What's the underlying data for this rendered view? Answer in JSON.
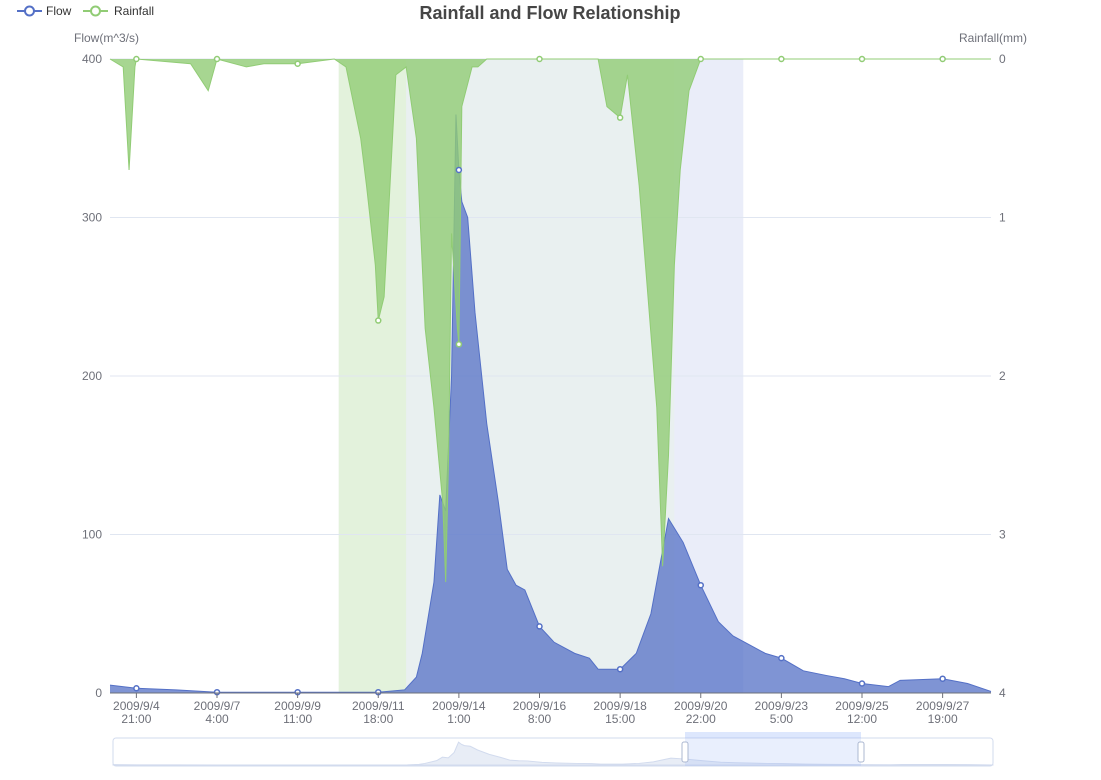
{
  "chart_data": {
    "type": "area",
    "title": "Rainfall and Flow Relationship",
    "legend": [
      {
        "name": "Flow",
        "color": "#5470c6"
      },
      {
        "name": "Rainfall",
        "color": "#91cc75"
      }
    ],
    "legend_position": "top-left",
    "y_left": {
      "name": "Flow(m^3/s)",
      "min": 0,
      "max": 400,
      "ticks": [
        "0",
        "100",
        "200",
        "300",
        "400"
      ]
    },
    "y_right": {
      "name": "Rainfall(mm)",
      "min": 0,
      "max": 4,
      "inverse": true,
      "ticks": [
        "0",
        "1",
        "2",
        "3",
        "4"
      ]
    },
    "x_labels": [
      [
        "2009/9/4",
        "21:00"
      ],
      [
        "2009/9/7",
        "4:00"
      ],
      [
        "2009/9/9",
        "11:00"
      ],
      [
        "2009/9/11",
        "18:00"
      ],
      [
        "2009/9/14",
        "1:00"
      ],
      [
        "2009/9/16",
        "8:00"
      ],
      [
        "2009/9/18",
        "15:00"
      ],
      [
        "2009/9/20",
        "22:00"
      ],
      [
        "2009/9/23",
        "5:00"
      ],
      [
        "2009/9/25",
        "12:00"
      ],
      [
        "2009/9/27",
        "19:00"
      ]
    ],
    "x_range": [
      "2009/9/4 3:00",
      "2009/9/29 4:00"
    ],
    "time_format": "date-hour",
    "grid": true,
    "mark_areas": [
      {
        "from": "2009/9/10 15:00",
        "to": "2009/9/12 13:00",
        "color": "#91cc75"
      },
      {
        "from": "2009/9/12 13:00",
        "to": "2009/9/20 4:00",
        "color": "#a7c4c2"
      },
      {
        "from": "2009/9/20 4:00",
        "to": "2009/9/22 3:00",
        "color": "#aab9e8"
      }
    ],
    "series": [
      {
        "name": "Flow",
        "axis": "left",
        "color": "#5470c6",
        "points": [
          [
            "2009/9/4 3:00",
            5
          ],
          [
            "2009/9/4 21:00",
            3
          ],
          [
            "2009/9/6 0:00",
            2
          ],
          [
            "2009/9/7 4:00",
            0.5
          ],
          [
            "2009/9/9 11:00",
            0.5
          ],
          [
            "2009/9/11 18:00",
            0.5
          ],
          [
            "2009/9/12 12:00",
            2
          ],
          [
            "2009/9/12 20:00",
            10
          ],
          [
            "2009/9/13 0:00",
            25
          ],
          [
            "2009/9/13 8:00",
            70
          ],
          [
            "2009/9/13 12:00",
            125
          ],
          [
            "2009/9/13 16:00",
            115
          ],
          [
            "2009/9/13 20:00",
            200
          ],
          [
            "2009/9/13 23:00",
            365
          ],
          [
            "2009/9/14 1:00",
            330
          ],
          [
            "2009/9/14 3:00",
            310
          ],
          [
            "2009/9/14 7:00",
            300
          ],
          [
            "2009/9/14 12:00",
            240
          ],
          [
            "2009/9/14 20:00",
            170
          ],
          [
            "2009/9/15 4:00",
            120
          ],
          [
            "2009/9/15 10:00",
            78
          ],
          [
            "2009/9/15 16:00",
            68
          ],
          [
            "2009/9/15 22:00",
            65
          ],
          [
            "2009/9/16 8:00",
            42
          ],
          [
            "2009/9/16 18:00",
            32
          ],
          [
            "2009/9/17 8:00",
            25
          ],
          [
            "2009/9/17 18:00",
            22
          ],
          [
            "2009/9/18 0:00",
            15
          ],
          [
            "2009/9/18 15:00",
            15
          ],
          [
            "2009/9/19 2:00",
            25
          ],
          [
            "2009/9/19 12:00",
            50
          ],
          [
            "2009/9/19 20:00",
            90
          ],
          [
            "2009/9/20 0:00",
            110
          ],
          [
            "2009/9/20 10:00",
            95
          ],
          [
            "2009/9/20 22:00",
            68
          ],
          [
            "2009/9/21 10:00",
            45
          ],
          [
            "2009/9/21 20:00",
            36
          ],
          [
            "2009/9/22 8:00",
            30
          ],
          [
            "2009/9/22 18:00",
            25
          ],
          [
            "2009/9/23 5:00",
            22
          ],
          [
            "2009/9/23 20:00",
            14
          ],
          [
            "2009/9/24 12:00",
            11
          ],
          [
            "2009/9/25 0:00",
            9
          ],
          [
            "2009/9/25 12:00",
            6
          ],
          [
            "2009/9/26 6:00",
            4
          ],
          [
            "2009/9/26 14:00",
            8
          ],
          [
            "2009/9/27 19:00",
            9
          ],
          [
            "2009/9/28 12:00",
            6
          ],
          [
            "2009/9/29 4:00",
            1
          ]
        ]
      },
      {
        "name": "Rainfall",
        "axis": "right",
        "color": "#91cc75",
        "points": [
          [
            "2009/9/4 3:00",
            0
          ],
          [
            "2009/9/4 12:00",
            0.05
          ],
          [
            "2009/9/4 16:00",
            0.7
          ],
          [
            "2009/9/4 20:00",
            0.05
          ],
          [
            "2009/9/4 21:00",
            0
          ],
          [
            "2009/9/6 10:00",
            0.03
          ],
          [
            "2009/9/6 22:00",
            0.2
          ],
          [
            "2009/9/7 4:00",
            0
          ],
          [
            "2009/9/8 0:00",
            0.05
          ],
          [
            "2009/9/8 12:00",
            0.03
          ],
          [
            "2009/9/9 11:00",
            0.03
          ],
          [
            "2009/9/10 12:00",
            0
          ],
          [
            "2009/9/10 20:00",
            0.05
          ],
          [
            "2009/9/11 6:00",
            0.5
          ],
          [
            "2009/9/11 10:00",
            0.8
          ],
          [
            "2009/9/11 16:00",
            1.3
          ],
          [
            "2009/9/11 18:00",
            1.65
          ],
          [
            "2009/9/11 22:00",
            1.5
          ],
          [
            "2009/9/12 6:00",
            0.1
          ],
          [
            "2009/9/12 13:00",
            0.05
          ],
          [
            "2009/9/12 20:00",
            0.5
          ],
          [
            "2009/9/13 2:00",
            1.7
          ],
          [
            "2009/9/13 8:00",
            2.2
          ],
          [
            "2009/9/13 14:00",
            2.8
          ],
          [
            "2009/9/13 16:00",
            3.3
          ],
          [
            "2009/9/13 18:00",
            2.5
          ],
          [
            "2009/9/13 20:00",
            1.1
          ],
          [
            "2009/9/14 0:00",
            1.7
          ],
          [
            "2009/9/14 1:00",
            1.8
          ],
          [
            "2009/9/14 3:00",
            0.3
          ],
          [
            "2009/9/14 10:00",
            0.05
          ],
          [
            "2009/9/14 14:00",
            0.05
          ],
          [
            "2009/9/14 20:00",
            0
          ],
          [
            "2009/9/16 8:00",
            0
          ],
          [
            "2009/9/18 0:00",
            0
          ],
          [
            "2009/9/18 6:00",
            0.3
          ],
          [
            "2009/9/18 15:00",
            0.37
          ],
          [
            "2009/9/18 20:00",
            0.1
          ],
          [
            "2009/9/19 4:00",
            0.8
          ],
          [
            "2009/9/19 10:00",
            1.5
          ],
          [
            "2009/9/19 16:00",
            2.2
          ],
          [
            "2009/9/19 20:00",
            3.2
          ],
          [
            "2009/9/20 0:00",
            2.5
          ],
          [
            "2009/9/20 4:00",
            1.3
          ],
          [
            "2009/9/20 8:00",
            0.7
          ],
          [
            "2009/9/20 14:00",
            0.2
          ],
          [
            "2009/9/20 22:00",
            0
          ],
          [
            "2009/9/23 5:00",
            0
          ],
          [
            "2009/9/25 12:00",
            0
          ],
          [
            "2009/9/27 19:00",
            0
          ],
          [
            "2009/9/29 4:00",
            0
          ]
        ]
      }
    ],
    "data_zoom": {
      "type": "slider",
      "start_percent": 65,
      "end_percent": 85
    }
  }
}
